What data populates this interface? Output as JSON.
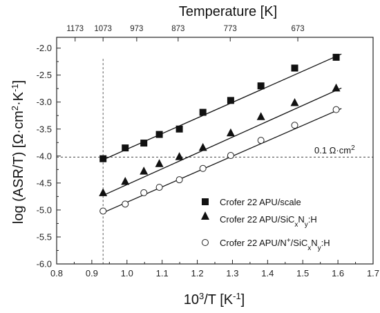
{
  "chart_data": {
    "type": "scatter",
    "xlabel": "10³/T [K⁻¹]",
    "ylabel": "log (ASR/T) [Ω·cm²·K⁻¹]",
    "top_axis_label": "Temperature [K]",
    "xlim": [
      0.8,
      1.7
    ],
    "ylim": [
      -6.0,
      -1.8
    ],
    "x_ticks": [
      "0.8",
      "0.9",
      "1.0",
      "1.1",
      "1.2",
      "1.3",
      "1.4",
      "1.5",
      "1.6",
      "1.7"
    ],
    "y_ticks": [
      "-2.0",
      "-2.5",
      "-3.0",
      "-3.5",
      "-4.0",
      "-4.5",
      "-5.0",
      "-5.5",
      "-6.0"
    ],
    "top_ticks": [
      {
        "label": "1173",
        "x": 0.8525
      },
      {
        "label": "1073",
        "x": 0.932
      },
      {
        "label": "973",
        "x": 1.0277
      },
      {
        "label": "873",
        "x": 1.1455
      },
      {
        "label": "773",
        "x": 1.2937
      },
      {
        "label": "673",
        "x": 1.4859
      }
    ],
    "reference_lines": {
      "vertical_x": 0.932,
      "horizontal_y": -4.02,
      "horizontal_label": "0.1 Ω·cm²"
    },
    "legend_position": "bottom-right",
    "series": [
      {
        "name": "Crofer 22 APU/scale",
        "marker": "square",
        "x": [
          0.932,
          0.995,
          1.048,
          1.092,
          1.149,
          1.216,
          1.295,
          1.381,
          1.477,
          1.595
        ],
        "y": [
          -4.05,
          -3.85,
          -3.76,
          -3.6,
          -3.5,
          -3.19,
          -2.97,
          -2.7,
          -2.37,
          -2.17
        ],
        "fit": [
          [
            0.932,
            -4.07
          ],
          [
            1.61,
            -2.11
          ]
        ]
      },
      {
        "name": "Crofer 22 APU/SiCxNy:H",
        "marker": "triangle",
        "x": [
          0.932,
          0.995,
          1.048,
          1.092,
          1.149,
          1.216,
          1.295,
          1.381,
          1.477,
          1.595
        ],
        "y": [
          -4.68,
          -4.47,
          -4.28,
          -4.14,
          -4.01,
          -3.84,
          -3.57,
          -3.27,
          -3.01,
          -2.74
        ],
        "fit": [
          [
            0.932,
            -4.73
          ],
          [
            1.61,
            -2.74
          ]
        ]
      },
      {
        "name": "Crofer 22 APU/N⁺/SiCxNy:H",
        "marker": "circle",
        "x": [
          0.932,
          0.995,
          1.048,
          1.092,
          1.149,
          1.216,
          1.295,
          1.381,
          1.477,
          1.595
        ],
        "y": [
          -5.02,
          -4.89,
          -4.68,
          -4.58,
          -4.44,
          -4.23,
          -3.99,
          -3.71,
          -3.43,
          -3.14
        ],
        "fit": [
          [
            0.932,
            -5.05
          ],
          [
            1.61,
            -3.12
          ]
        ]
      }
    ]
  }
}
